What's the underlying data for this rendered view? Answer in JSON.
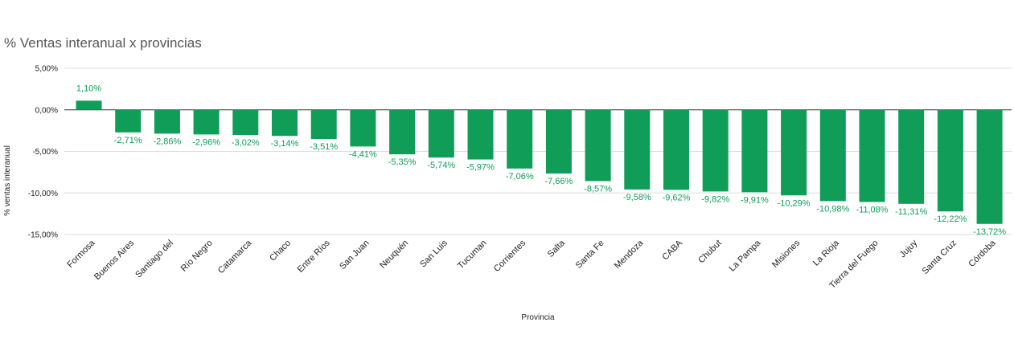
{
  "chart_data": {
    "type": "bar",
    "title": "% Ventas interanual x provincias",
    "xlabel": "Provincia",
    "ylabel": "% ventas interanual",
    "ylim": [
      -15,
      5
    ],
    "yticks": [
      5,
      0,
      -5,
      -10,
      -15
    ],
    "ytick_labels": [
      "5,00%",
      "0,00%",
      "-5,00%",
      "-10,00%",
      "-15,00%"
    ],
    "grid": true,
    "bar_color": "#0f9d58",
    "categories": [
      "Formosa",
      "Buenos Aires",
      "Santiago del",
      "Río Negro",
      "Catamarca",
      "Chaco",
      "Entre Ríos",
      "San Juan",
      "Neuquén",
      "San Luis",
      "Tucuman",
      "Corrientes",
      "Salta",
      "Santa Fe",
      "Mendoza",
      "CABA",
      "Chubut",
      "La Pampa",
      "Misiones",
      "La Rioja",
      "Tierra del Fuego",
      "Jujuy",
      "Santa Cruz",
      "Córdoba"
    ],
    "values": [
      1.1,
      -2.71,
      -2.86,
      -2.96,
      -3.02,
      -3.14,
      -3.51,
      -4.41,
      -5.35,
      -5.74,
      -5.97,
      -7.06,
      -7.66,
      -8.57,
      -9.58,
      -9.62,
      -9.82,
      -9.91,
      -10.29,
      -10.98,
      -11.08,
      -11.31,
      -12.22,
      -13.72
    ],
    "value_labels": [
      "1,10%",
      "-2,71%",
      "-2,86%",
      "-2,96%",
      "-3,02%",
      "-3,14%",
      "-3,51%",
      "-4,41%",
      "-5,35%",
      "-5,74%",
      "-5,97%",
      "-7,06%",
      "-7,66%",
      "-8,57%",
      "-9,58%",
      "-9,62%",
      "-9,82%",
      "-9,91%",
      "-10,29%",
      "-10,98%",
      "-11,08%",
      "-11,31%",
      "-12,22%",
      "-13,72%"
    ]
  }
}
